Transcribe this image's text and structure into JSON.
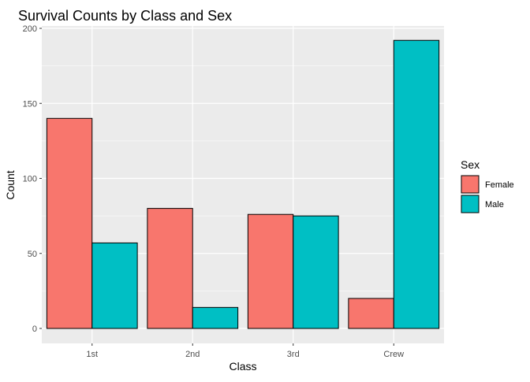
{
  "chart_data": {
    "type": "bar",
    "title": "Survival Counts by Class and Sex",
    "xlabel": "Class",
    "ylabel": "Count",
    "categories": [
      "1st",
      "2nd",
      "3rd",
      "Crew"
    ],
    "series": [
      {
        "name": "Female",
        "color": "#F8766D",
        "values": [
          140,
          80,
          76,
          20
        ]
      },
      {
        "name": "Male",
        "color": "#00BFC4",
        "values": [
          57,
          14,
          75,
          192
        ]
      }
    ],
    "ylim": [
      0,
      200
    ],
    "yticks": [
      0,
      50,
      100,
      150,
      200
    ],
    "legend": {
      "title": "Sex",
      "position": "right"
    },
    "panel_background": "#EBEBEB",
    "grid": true,
    "bar_outline": "#000000"
  }
}
